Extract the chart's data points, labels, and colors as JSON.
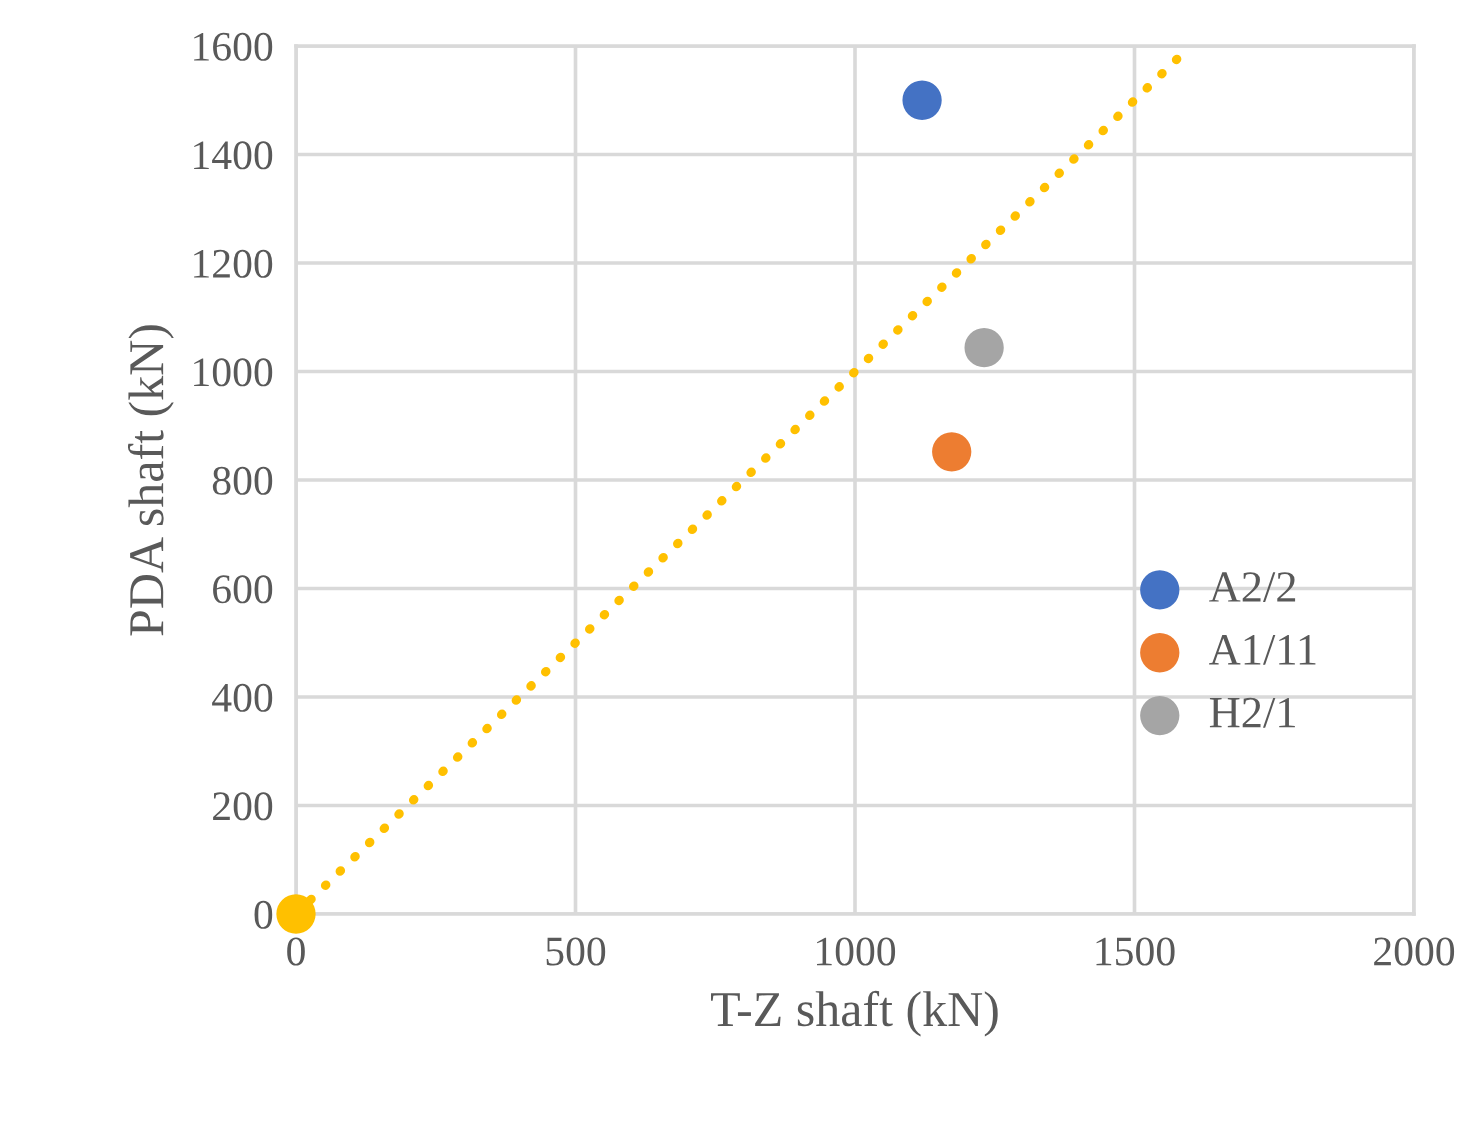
{
  "chart_data": {
    "type": "scatter",
    "xlabel": "T-Z shaft (kN)",
    "ylabel": "PDA shaft (kN)",
    "xlim": [
      0,
      2000
    ],
    "xticks": [
      0,
      500,
      1000,
      1500,
      2000
    ],
    "ylim": [
      0,
      1600
    ],
    "yticks": [
      0,
      200,
      400,
      600,
      800,
      1000,
      1200,
      1400,
      1600
    ],
    "grid": true,
    "legend": "right",
    "marker": "circle",
    "series": [
      {
        "name": "A2/2",
        "color": "#4472c4",
        "x": [
          1120
        ],
        "values": [
          1500
        ]
      },
      {
        "name": "A1/11",
        "color": "#ed7d31",
        "x": [
          1173
        ],
        "values": [
          852
        ]
      },
      {
        "name": "H2/1",
        "color": "#a5a5a5",
        "x": [
          1231
        ],
        "values": [
          1044
        ]
      },
      {
        "type": "line",
        "color": "#ffc000",
        "line_style": "dotted",
        "marker": "none",
        "x": [
          0,
          1600
        ],
        "values": [
          0,
          1600
        ]
      },
      {
        "color": "#ffc000",
        "x": [
          0
        ],
        "values": [
          0
        ]
      }
    ]
  }
}
